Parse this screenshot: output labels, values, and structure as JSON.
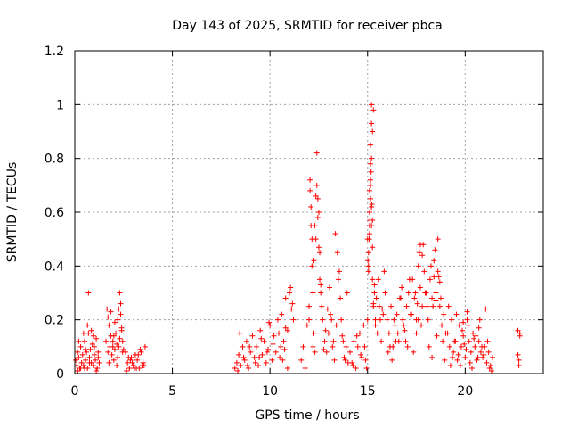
{
  "chart_data": {
    "type": "scatter",
    "title": "Day 143 of 2025, SRMTID for receiver pbca",
    "xlabel": "GPS time / hours",
    "ylabel": "SRMTID / TECUs",
    "xlim": [
      0,
      24
    ],
    "ylim": [
      0,
      1.2
    ],
    "xticks": [
      0,
      5,
      10,
      15,
      20
    ],
    "yticks": [
      0,
      0.2,
      0.4,
      0.6,
      0.8,
      1,
      1.2
    ],
    "ytick_labels": [
      "0",
      "0.2",
      "0.4",
      "0.6",
      "0.8",
      "1",
      "1.2"
    ],
    "marker": "plus",
    "color": "#ff0000",
    "grid": true,
    "series": [
      {
        "name": "SRMTID",
        "x": [
          0.05,
          0.1,
          0.15,
          0.2,
          0.25,
          0.3,
          0.35,
          0.4,
          0.45,
          0.5,
          0.55,
          0.6,
          0.65,
          0.7,
          0.75,
          0.8,
          0.85,
          0.9,
          0.95,
          1.0,
          1.05,
          1.1,
          1.15,
          1.2,
          1.25,
          0.3,
          0.55,
          0.75,
          1.0,
          1.1,
          0.7,
          0.2,
          0.45,
          0.95,
          0.65,
          0.15,
          1.2,
          0.85,
          0.5,
          1.6,
          1.65,
          1.7,
          1.75,
          1.8,
          1.85,
          1.9,
          1.95,
          2.0,
          2.05,
          2.1,
          2.15,
          2.2,
          2.25,
          2.3,
          2.35,
          2.4,
          2.45,
          2.5,
          1.75,
          1.95,
          2.2,
          2.35,
          2.4,
          2.3,
          2.05,
          1.85,
          2.45,
          2.15,
          1.7,
          2.25,
          2.0,
          2.6,
          2.7,
          2.8,
          2.9,
          3.0,
          3.1,
          3.2,
          3.3,
          3.4,
          3.5,
          3.6,
          2.65,
          2.85,
          3.05,
          3.25,
          3.45,
          2.75,
          2.95,
          3.15,
          3.35,
          3.55,
          8.2,
          8.3,
          8.4,
          8.5,
          8.6,
          8.7,
          8.8,
          8.9,
          9.0,
          9.1,
          9.2,
          9.3,
          9.4,
          9.5,
          9.6,
          9.7,
          9.8,
          9.9,
          10.0,
          10.1,
          10.2,
          10.3,
          10.4,
          10.5,
          10.6,
          10.7,
          10.8,
          10.9,
          11.0,
          11.1,
          11.2,
          8.35,
          8.65,
          8.95,
          9.25,
          9.55,
          9.85,
          10.15,
          10.45,
          10.75,
          11.05,
          8.45,
          8.85,
          9.45,
          9.95,
          10.55,
          10.9,
          11.15,
          10.65,
          10.8,
          11.6,
          11.7,
          11.8,
          11.9,
          12.0,
          12.05,
          12.1,
          12.15,
          12.2,
          12.25,
          12.3,
          12.35,
          12.4,
          12.45,
          12.5,
          12.55,
          12.6,
          12.7,
          12.8,
          12.9,
          13.0,
          13.1,
          13.2,
          13.3,
          13.4,
          13.5,
          13.6,
          13.7,
          13.8,
          13.9,
          14.0,
          12.05,
          12.1,
          12.15,
          12.4,
          12.45,
          12.5,
          12.55,
          12.6,
          12.0,
          12.2,
          12.35,
          12.65,
          13.05,
          13.25,
          13.45,
          13.15,
          13.35,
          13.55,
          12.75,
          12.85,
          12.95,
          13.65,
          13.75,
          13.85,
          13.95,
          12.25,
          12.3,
          14.1,
          14.2,
          14.3,
          14.4,
          14.5,
          14.6,
          14.7,
          14.8,
          14.9,
          15.0,
          15.05,
          15.1,
          15.15,
          15.2,
          15.25,
          15.3,
          15.35,
          15.4,
          15.5,
          15.6,
          15.7,
          15.8,
          15.9,
          15.0,
          15.1,
          15.15,
          15.2,
          15.25,
          15.3,
          15.1,
          15.15,
          15.2,
          15.25,
          15.05,
          15.1,
          15.2,
          15.05,
          15.15,
          15.25,
          15.35,
          15.45,
          15.55,
          15.65,
          15.75,
          15.85,
          14.25,
          14.45,
          14.65,
          14.85,
          14.95,
          15.15,
          15.2,
          15.22,
          15.18,
          15.12,
          15.08,
          15.02,
          15.3,
          15.4,
          16.0,
          16.1,
          16.2,
          16.3,
          16.4,
          16.5,
          16.6,
          16.7,
          16.8,
          16.9,
          17.0,
          17.1,
          17.2,
          17.3,
          17.4,
          17.5,
          17.6,
          17.7,
          17.8,
          17.9,
          18.0,
          18.1,
          18.2,
          18.3,
          18.4,
          18.5,
          18.6,
          18.7,
          18.8,
          18.9,
          19.0,
          16.05,
          16.25,
          16.45,
          16.65,
          16.85,
          17.05,
          17.25,
          17.45,
          17.65,
          17.85,
          18.05,
          18.25,
          18.45,
          18.65,
          18.85,
          17.5,
          17.6,
          17.7,
          18.3,
          18.5,
          18.6,
          18.7,
          16.15,
          16.35,
          16.55,
          16.75,
          16.95,
          17.15,
          17.35,
          17.55,
          17.75,
          17.95,
          18.15,
          18.35,
          18.55,
          18.75,
          18.95,
          17.8,
          18.4,
          19.1,
          19.2,
          19.3,
          19.4,
          19.5,
          19.6,
          19.7,
          19.8,
          19.9,
          20.0,
          20.1,
          20.2,
          20.3,
          20.4,
          20.5,
          20.6,
          20.7,
          20.8,
          20.9,
          21.0,
          21.1,
          21.2,
          21.3,
          21.4,
          19.15,
          19.35,
          19.55,
          19.75,
          19.95,
          20.15,
          20.35,
          20.55,
          20.75,
          20.95,
          21.15,
          21.35,
          19.25,
          19.45,
          19.65,
          19.85,
          20.05,
          20.25,
          20.45,
          20.65,
          20.85,
          21.05,
          21.25,
          19.9,
          20.1,
          20.7,
          22.7,
          22.75,
          22.8,
          22.7,
          22.75,
          22.8
        ],
        "y": [
          0.05,
          0.03,
          0.08,
          0.06,
          0.02,
          0.1,
          0.04,
          0.07,
          0.03,
          0.12,
          0.05,
          0.08,
          0.02,
          0.15,
          0.06,
          0.09,
          0.04,
          0.11,
          0.03,
          0.07,
          0.05,
          0.13,
          0.02,
          0.06,
          0.04,
          0.02,
          0.09,
          0.04,
          0.1,
          0.01,
          0.3,
          0.12,
          0.15,
          0.14,
          0.18,
          0.01,
          0.08,
          0.16,
          0.02,
          0.12,
          0.24,
          0.08,
          0.18,
          0.1,
          0.14,
          0.07,
          0.12,
          0.05,
          0.09,
          0.15,
          0.11,
          0.2,
          0.24,
          0.3,
          0.22,
          0.17,
          0.12,
          0.09,
          0.04,
          0.1,
          0.06,
          0.26,
          0.16,
          0.13,
          0.19,
          0.23,
          0.08,
          0.03,
          0.21,
          0.1,
          0.14,
          0.08,
          0.04,
          0.02,
          0.06,
          0.03,
          0.07,
          0.05,
          0.02,
          0.08,
          0.04,
          0.1,
          0.01,
          0.05,
          0.02,
          0.07,
          0.03,
          0.06,
          0.04,
          0.02,
          0.09,
          0.03,
          0.02,
          0.04,
          0.07,
          0.03,
          0.1,
          0.05,
          0.12,
          0.02,
          0.08,
          0.14,
          0.06,
          0.1,
          0.03,
          0.16,
          0.07,
          0.12,
          0.04,
          0.09,
          0.18,
          0.05,
          0.14,
          0.08,
          0.2,
          0.06,
          0.22,
          0.12,
          0.28,
          0.16,
          0.3,
          0.24,
          0.2,
          0.01,
          0.06,
          0.1,
          0.04,
          0.13,
          0.08,
          0.11,
          0.15,
          0.09,
          0.32,
          0.15,
          0.03,
          0.06,
          0.19,
          0.1,
          0.02,
          0.26,
          0.05,
          0.17,
          0.05,
          0.1,
          0.02,
          0.18,
          0.25,
          0.72,
          0.62,
          0.5,
          0.3,
          0.42,
          0.55,
          0.66,
          0.7,
          0.58,
          0.47,
          0.35,
          0.3,
          0.2,
          0.12,
          0.08,
          0.15,
          0.22,
          0.1,
          0.05,
          0.18,
          0.35,
          0.28,
          0.14,
          0.06,
          0.1,
          0.04,
          0.68,
          0.55,
          0.4,
          0.82,
          0.65,
          0.6,
          0.45,
          0.33,
          0.2,
          0.1,
          0.5,
          0.25,
          0.32,
          0.12,
          0.45,
          0.2,
          0.52,
          0.38,
          0.09,
          0.16,
          0.24,
          0.2,
          0.12,
          0.05,
          0.3,
          0.15,
          0.08,
          0.08,
          0.04,
          0.12,
          0.02,
          0.1,
          0.15,
          0.06,
          0.18,
          0.05,
          0.2,
          0.4,
          0.52,
          0.78,
          0.62,
          0.35,
          0.25,
          0.3,
          0.2,
          0.15,
          0.25,
          0.12,
          0.22,
          0.3,
          0.5,
          0.55,
          0.65,
          0.8,
          0.9,
          0.98,
          0.6,
          0.72,
          1.0,
          0.57,
          0.45,
          0.68,
          0.93,
          0.38,
          0.7,
          0.47,
          0.33,
          0.28,
          0.35,
          0.2,
          0.24,
          0.38,
          0.03,
          0.14,
          0.07,
          0.1,
          0.02,
          0.85,
          0.55,
          0.63,
          0.75,
          0.57,
          0.5,
          0.42,
          0.26,
          0.18,
          0.2,
          0.15,
          0.25,
          0.1,
          0.18,
          0.22,
          0.12,
          0.28,
          0.2,
          0.16,
          0.25,
          0.3,
          0.22,
          0.35,
          0.28,
          0.2,
          0.4,
          0.32,
          0.25,
          0.38,
          0.3,
          0.2,
          0.35,
          0.28,
          0.42,
          0.3,
          0.38,
          0.25,
          0.18,
          0.22,
          0.15,
          0.08,
          0.05,
          0.12,
          0.28,
          0.18,
          0.1,
          0.22,
          0.3,
          0.45,
          0.48,
          0.25,
          0.4,
          0.46,
          0.36,
          0.12,
          0.15,
          0.2,
          0.48,
          0.06,
          0.27,
          0.5,
          0.34,
          0.1,
          0.2,
          0.15,
          0.32,
          0.12,
          0.35,
          0.08,
          0.26,
          0.18,
          0.3,
          0.1,
          0.25,
          0.14,
          0.28,
          0.05,
          0.44,
          0.36,
          0.15,
          0.1,
          0.2,
          0.08,
          0.12,
          0.05,
          0.18,
          0.1,
          0.14,
          0.06,
          0.2,
          0.12,
          0.08,
          0.15,
          0.1,
          0.05,
          0.12,
          0.08,
          0.06,
          0.1,
          0.04,
          0.08,
          0.03,
          0.06,
          0.25,
          0.06,
          0.22,
          0.03,
          0.11,
          0.18,
          0.02,
          0.14,
          0.2,
          0.07,
          0.12,
          0.01,
          0.03,
          0.12,
          0.07,
          0.16,
          0.09,
          0.04,
          0.13,
          0.06,
          0.1,
          0.24,
          0.02,
          0.19,
          0.23,
          0.17,
          0.16,
          0.03,
          0.14,
          0.07,
          0.05,
          0.15
        ]
      }
    ]
  }
}
